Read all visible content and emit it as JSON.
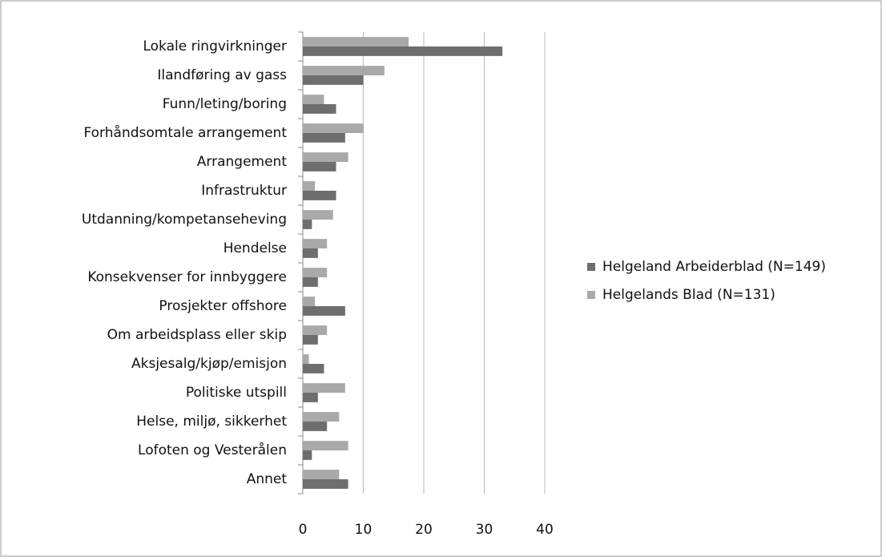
{
  "chart_data": {
    "type": "hbar",
    "categories": [
      "Lokale ringvirkninger",
      "Ilandføring av gass",
      "Funn/leting/boring",
      "Forhåndsomtale arrangement",
      "Arrangement",
      "Infrastruktur",
      "Utdanning/kompetanseheving",
      "Hendelse",
      "Konsekvenser for innbyggere",
      "Prosjekter offshore",
      "Om arbeidsplass eller skip",
      "Aksjesalg/kjøp/emisjon",
      "Politiske utspill",
      "Helse, miljø, sikkerhet",
      "Lofoten og Vesterålen",
      "Annet"
    ],
    "series": [
      {
        "name": "Helgeland Arbeiderblad (N=149)",
        "color": "#6e6e6e",
        "values": [
          33,
          10,
          5.5,
          7,
          5.5,
          5.5,
          1.5,
          2.5,
          2.5,
          7,
          2.5,
          3.5,
          2.5,
          4,
          1.5,
          7.5
        ]
      },
      {
        "name": "Helgelands Blad (N=131)",
        "color": "#a9a9a9",
        "values": [
          17.5,
          13.5,
          3.5,
          10,
          7.5,
          2,
          5,
          4,
          4,
          2,
          4,
          1,
          7,
          6,
          7.5,
          6
        ]
      }
    ],
    "xlim": [
      0,
      40
    ],
    "xticks": [
      0,
      10,
      20,
      30,
      40
    ],
    "grid": true,
    "legend": "right"
  }
}
